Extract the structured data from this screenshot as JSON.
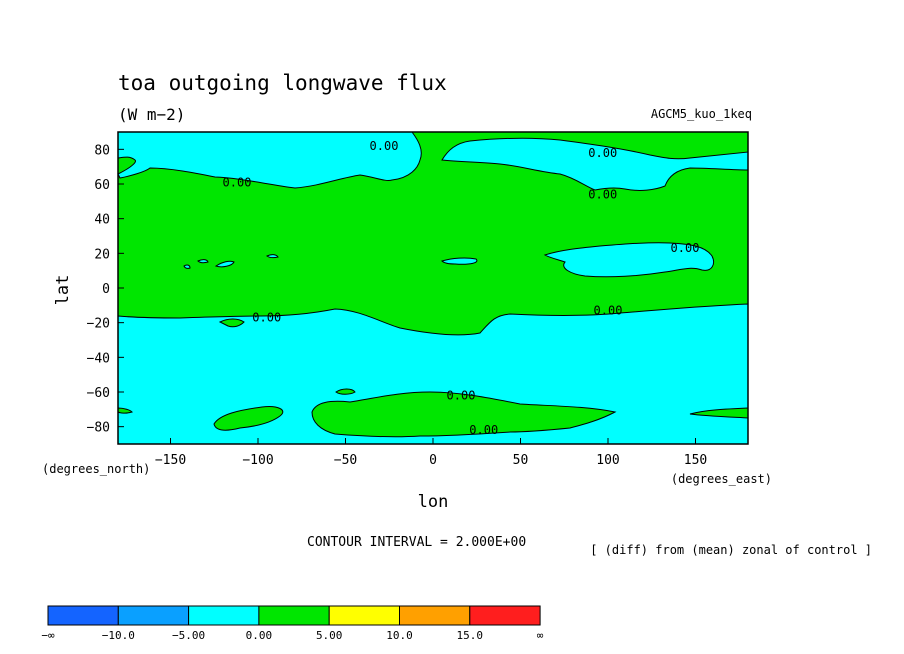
{
  "chart_data": {
    "type": "contour",
    "title": "toa outgoing longwave flux",
    "units": "(W m−2)",
    "model": "AGCM5_kuo_1keq",
    "xlabel": "lon",
    "ylabel": "lat",
    "x_units": "(degrees_east)",
    "y_units": "(degrees_north)",
    "xlim": [
      -180,
      180
    ],
    "ylim": [
      -90,
      90
    ],
    "x_ticks": [
      -150,
      -100,
      -50,
      0,
      50,
      100,
      150
    ],
    "y_ticks": [
      -80,
      -60,
      -40,
      -20,
      0,
      20,
      40,
      60,
      80
    ],
    "contour_interval": "CONTOUR INTERVAL = 2.000E+00",
    "note": "[ (diff) from (mean) zonal of control ]",
    "contour_labels": [
      {
        "text": "0.00",
        "lon": -28,
        "lat": 82
      },
      {
        "text": "0.00",
        "lon": 97,
        "lat": 78
      },
      {
        "text": "0.00",
        "lon": -112,
        "lat": 61
      },
      {
        "text": "0.00",
        "lon": 97,
        "lat": 54
      },
      {
        "text": "0.00",
        "lon": 144,
        "lat": 23
      },
      {
        "text": "0.00",
        "lon": -95,
        "lat": -17
      },
      {
        "text": "0.00",
        "lon": 100,
        "lat": -13
      },
      {
        "text": "0.00",
        "lon": 16,
        "lat": -62
      },
      {
        "text": "0.00",
        "lon": 29,
        "lat": -82
      }
    ],
    "colorbar": {
      "colors": [
        "#1464ff",
        "#0aa0ff",
        "#00ffff",
        "#00e600",
        "#ffff00",
        "#ffa000",
        "#ff1e1e"
      ],
      "labels": [
        "−∞",
        "−10.0",
        "−5.00",
        "0.00",
        "5.00",
        "10.0",
        "15.0",
        "∞"
      ]
    },
    "fill_colors": {
      "negative": "#00ffff",
      "positive": "#00e600"
    }
  }
}
